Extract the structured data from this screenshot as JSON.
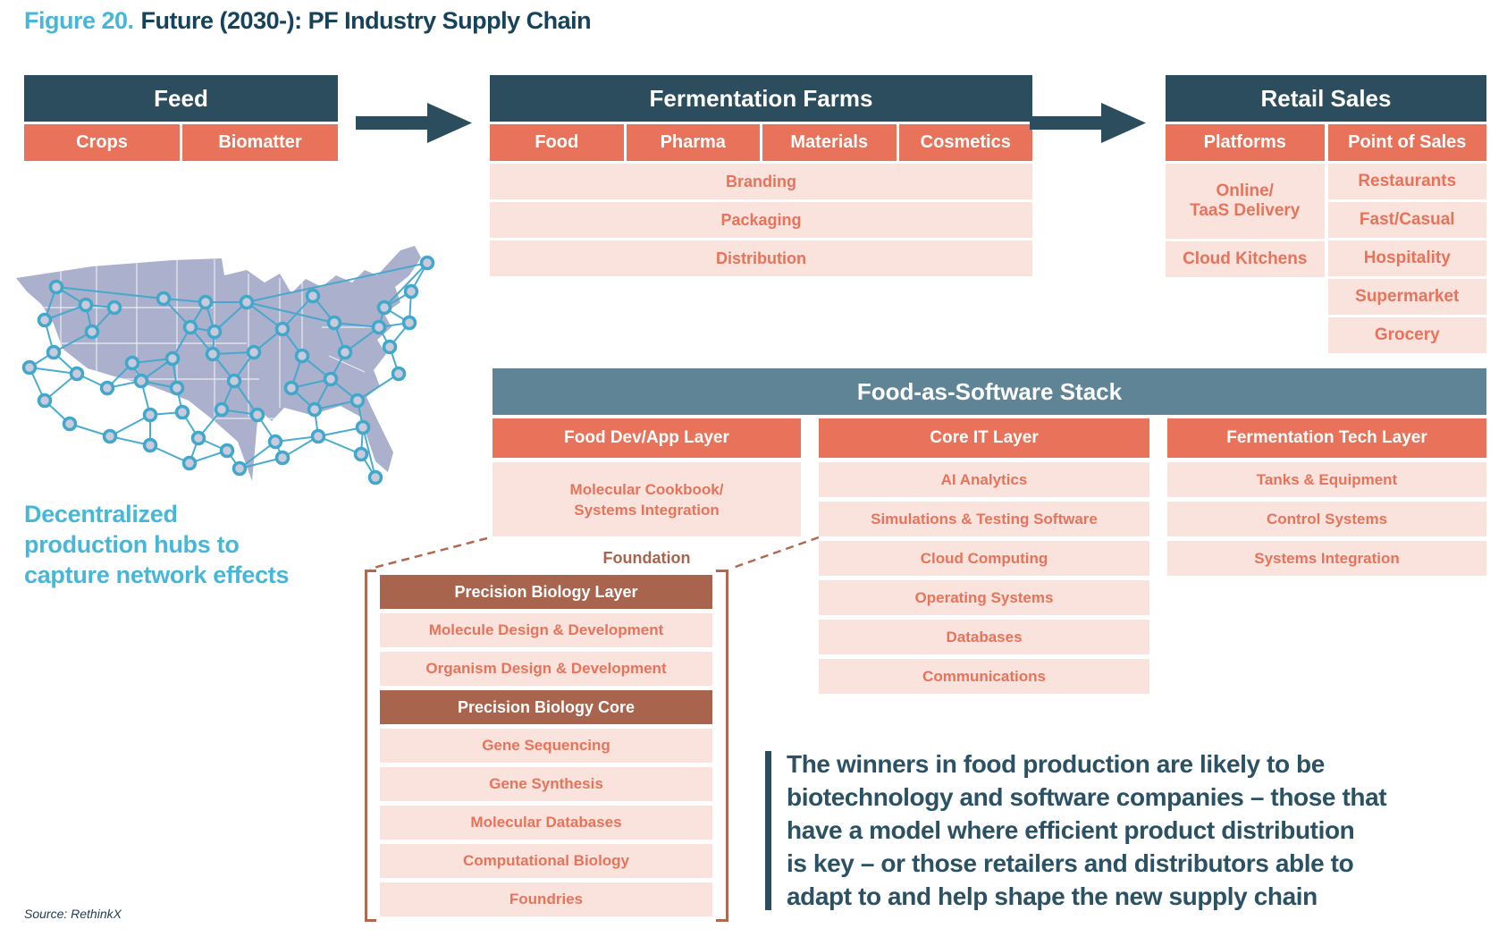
{
  "title": {
    "figure": "Figure 20.",
    "text": "Future (2030-): PF Industry Supply Chain"
  },
  "colors": {
    "dark_teal": "#2B4D5D",
    "slate": "#5E8495",
    "salmon": "#E8735A",
    "light_pink": "#F9E3DC",
    "brown": "#A9644E",
    "cyan": "#47B7D8",
    "quote_text": "#2B5164",
    "map_fill": "#ABB0CC",
    "network_blue": "#41A8CC"
  },
  "feed": {
    "header": "Feed",
    "columns": [
      "Crops",
      "Biomatter"
    ]
  },
  "fermentation_farms": {
    "header": "Fermentation Farms",
    "columns": [
      "Food",
      "Pharma",
      "Materials",
      "Cosmetics"
    ],
    "rows": [
      "Branding",
      "Packaging",
      "Distribution"
    ]
  },
  "retail_sales": {
    "header": "Retail Sales",
    "platforms_header": "Platforms",
    "pos_header": "Point of Sales",
    "platforms": [
      "Online/\nTaaS Delivery",
      "Cloud Kitchens"
    ],
    "point_of_sales": [
      "Restaurants",
      "Fast/Casual",
      "Hospitality",
      "Supermarket",
      "Grocery"
    ]
  },
  "map": {
    "caption": "Decentralized\nproduction hubs to\ncapture network effects"
  },
  "fas": {
    "header": "Food-as-Software Stack",
    "col1": {
      "label": "Food Dev/App Layer",
      "cell": "Molecular Cookbook/\nSystems Integration",
      "footer": "Foundation"
    },
    "col2": {
      "label": "Core IT Layer",
      "rows": [
        "AI Analytics",
        "Simulations & Testing Software",
        "Cloud Computing",
        "Operating Systems",
        "Databases",
        "Communications"
      ]
    },
    "col3": {
      "label": "Fermentation Tech Layer",
      "rows": [
        "Tanks & Equipment",
        "Control Systems",
        "Systems Integration"
      ]
    }
  },
  "precision_biology": {
    "layer_header": "Precision Biology Layer",
    "layer_rows": [
      "Molecule Design & Development",
      "Organism Design & Development"
    ],
    "core_header": "Precision Biology Core",
    "core_rows": [
      "Gene Sequencing",
      "Gene Synthesis",
      "Molecular Databases",
      "Computational Biology",
      "Foundries"
    ]
  },
  "quote": {
    "text": "The winners in food production are likely to be\nbiotechnology and software companies – those that\nhave a model where efficient product distribution\nis key – or those retailers and distributors able to\nadapt to and help shape the new supply chain"
  },
  "source": "Source: RethinkX"
}
